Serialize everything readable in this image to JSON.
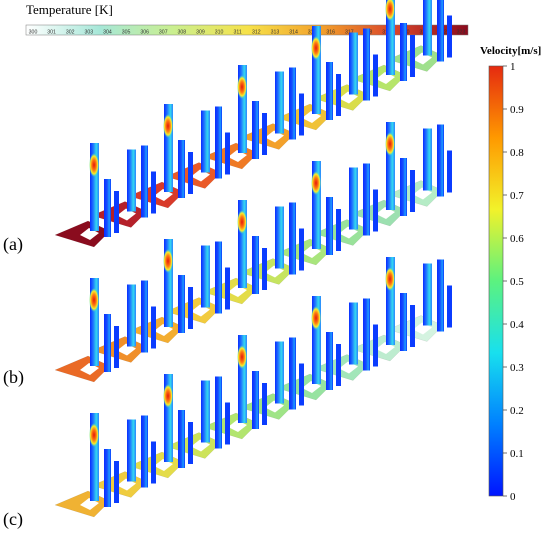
{
  "temperature_legend": {
    "title": "Temperature [K]",
    "ticks": [
      "300",
      "301",
      "302",
      "303",
      "304",
      "305",
      "306",
      "307",
      "308",
      "309",
      "310",
      "311",
      "312",
      "313",
      "314",
      "315",
      "316",
      "317",
      "318",
      "319",
      "320",
      "321",
      "322",
      "323"
    ],
    "colors": [
      "#ffffff",
      "#a6e7d8",
      "#caef8f",
      "#f6e24a",
      "#f3a12b",
      "#d9452a",
      "#8a0b1e"
    ]
  },
  "velocity_legend": {
    "title": "Velocity[m/s]",
    "ticks": [
      "1",
      "0.9",
      "0.8",
      "0.7",
      "0.6",
      "0.5",
      "0.4",
      "0.3",
      "0.2",
      "0.1",
      "0"
    ],
    "colors": [
      "#0014ff",
      "#0080ff",
      "#18e0ee",
      "#5cf27f",
      "#f2f22a",
      "#ff9900",
      "#e52a10"
    ]
  },
  "panels": [
    {
      "label": "(a)",
      "plate_colors": [
        "#8a0c1e",
        "#b5202a",
        "#d83a2a",
        "#ea5a28",
        "#ef7a25",
        "#f3a12b",
        "#f0c238",
        "#d9dd4a",
        "#b6e56a",
        "#9fe08c"
      ]
    },
    {
      "label": "(b)",
      "plate_colors": [
        "#ea6a26",
        "#f08f2a",
        "#f3ad30",
        "#f2cb3e",
        "#e3dc48",
        "#c6e460",
        "#a9e57d",
        "#99e29a",
        "#9ce0b0",
        "#b5ecc6"
      ]
    },
    {
      "label": "(c)",
      "plate_colors": [
        "#f0b233",
        "#efcc3f",
        "#e4dc4a",
        "#cde35a",
        "#b2e56f",
        "#9fe487",
        "#97e3a0",
        "#a2e6b9",
        "#bdeccf",
        "#d4f3e0"
      ]
    }
  ]
}
